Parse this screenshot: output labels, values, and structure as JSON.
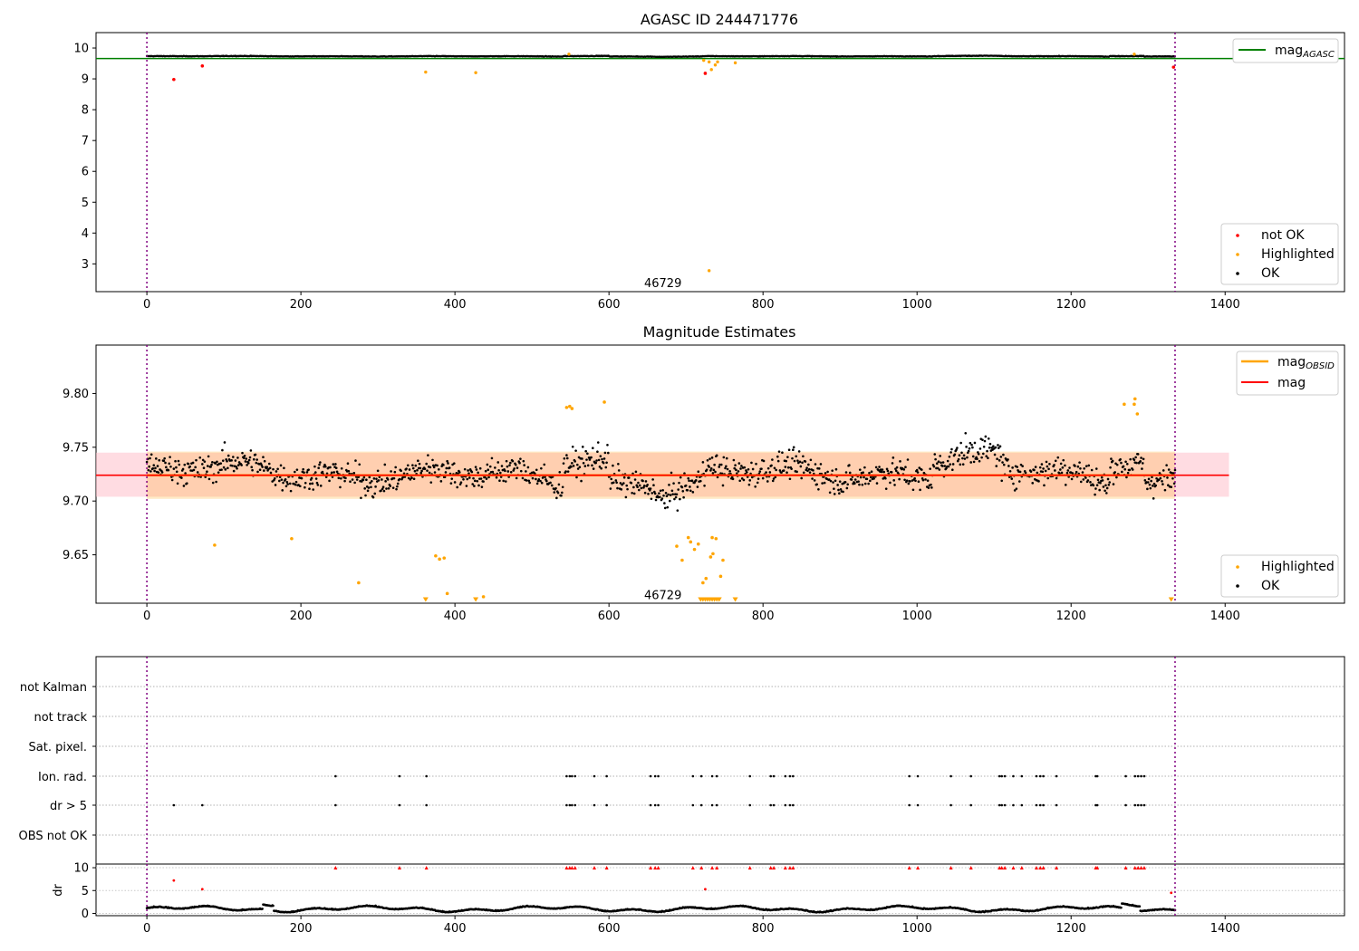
{
  "chart_data": [
    {
      "type": "scatter",
      "title": "AGASC ID 244471776",
      "xlim": [
        -66,
        1555
      ],
      "ylim": [
        2.1,
        10.5
      ],
      "x_ticks": [
        0,
        200,
        400,
        600,
        800,
        1000,
        1200,
        1400
      ],
      "y_ticks": [
        3,
        4,
        5,
        6,
        7,
        8,
        9,
        10
      ],
      "series": [
        {
          "name": "not OK",
          "color": "#ff0000",
          "points": [
            [
              35,
              8.98
            ],
            [
              72,
              9.42
            ],
            [
              725,
              9.18
            ],
            [
              1333,
              9.38
            ]
          ]
        },
        {
          "name": "Highlighted",
          "color": "#ffa500",
          "points": [
            [
              362,
              9.22
            ],
            [
              427,
              9.2
            ],
            [
              730,
              2.78
            ],
            [
              723,
              9.6
            ],
            [
              730,
              9.55
            ],
            [
              733,
              9.3
            ],
            [
              738,
              9.45
            ],
            [
              741,
              9.55
            ],
            [
              764,
              9.52
            ],
            [
              548,
              9.8
            ],
            [
              1282,
              9.8
            ]
          ]
        },
        {
          "name": "OK",
          "color": "#000000",
          "range": [
            0,
            1335
          ],
          "level": 9.73,
          "spread": 0.03
        }
      ],
      "lines": [
        {
          "name": "mag_AGASC",
          "color": "#008000",
          "y": 9.66
        }
      ],
      "obs_boundaries": [
        0,
        1335
      ],
      "annotation": {
        "text": "46729",
        "x": 670,
        "y": 2.45
      }
    },
    {
      "type": "scatter",
      "title": "Magnitude Estimates",
      "xlim": [
        -66,
        1555
      ],
      "ylim": [
        9.605,
        9.845
      ],
      "x_ticks": [
        0,
        200,
        400,
        600,
        800,
        1000,
        1200,
        1400
      ],
      "y_ticks": [
        "9.65",
        "9.70",
        "9.75",
        "9.80"
      ],
      "mag": 9.724,
      "mag_band": [
        9.704,
        9.745
      ],
      "mag_obsid_band": [
        9.702,
        9.746
      ],
      "series": [
        {
          "name": "Highlighted",
          "color": "#ffa500",
          "points": [
            [
              88,
              9.659
            ],
            [
              188,
              9.665
            ],
            [
              275,
              9.624
            ],
            [
              375,
              9.649
            ],
            [
              380,
              9.646
            ],
            [
              386,
              9.647
            ],
            [
              390,
              9.614
            ],
            [
              437,
              9.611
            ],
            [
              545,
              9.787
            ],
            [
              549,
              9.788
            ],
            [
              552,
              9.786
            ],
            [
              594,
              9.792
            ],
            [
              688,
              9.658
            ],
            [
              695,
              9.645
            ],
            [
              703,
              9.666
            ],
            [
              706,
              9.662
            ],
            [
              711,
              9.655
            ],
            [
              716,
              9.66
            ],
            [
              722,
              9.624
            ],
            [
              726,
              9.628
            ],
            [
              732,
              9.648
            ],
            [
              734,
              9.666
            ],
            [
              735,
              9.651
            ],
            [
              739,
              9.665
            ],
            [
              745,
              9.63
            ],
            [
              748,
              9.645
            ],
            [
              1269,
              9.79
            ],
            [
              1282,
              9.79
            ],
            [
              1283,
              9.795
            ],
            [
              1286,
              9.781
            ]
          ]
        },
        {
          "name": "Highlighted (below range)",
          "color": "#ffa500",
          "marker": "triangle-down",
          "xs": [
            362,
            427,
            719,
            722,
            725,
            728,
            731,
            734,
            737,
            740,
            743,
            764,
            1330
          ]
        },
        {
          "name": "OK",
          "color": "#000000",
          "range": [
            0,
            1335
          ]
        }
      ],
      "lines": [
        {
          "name": "mag_OBSID",
          "color": "#ffa500"
        },
        {
          "name": "mag",
          "color": "#ff0000",
          "y": 9.724
        }
      ],
      "obs_boundaries": [
        0,
        1335
      ],
      "annotation": {
        "text": "46729",
        "x": 670,
        "y": 9.613
      }
    },
    {
      "type": "scatter",
      "title": "",
      "xlim": [
        -66,
        1555
      ],
      "flag_rows": [
        "not Kalman",
        "not track",
        "Sat. pixel.",
        "Ion. rad.",
        "dr > 5",
        "OBS not OK"
      ],
      "ion_rad_x": [
        245,
        328,
        363,
        545,
        549,
        552,
        556,
        581,
        597,
        654,
        660,
        664,
        709,
        720,
        734,
        740,
        783,
        810,
        814,
        829,
        835,
        839,
        990,
        1001,
        1044,
        1070,
        1107,
        1110,
        1114,
        1125,
        1136,
        1155,
        1160,
        1164,
        1181,
        1232,
        1234,
        1271,
        1283,
        1287,
        1291,
        1295
      ],
      "dr_gt5_extra_x": [
        35,
        72
      ],
      "obs_boundaries": [
        0,
        1335
      ]
    },
    {
      "type": "scatter",
      "title": "",
      "ylabel": "dr",
      "xlim": [
        -66,
        1555
      ],
      "ylim": [
        -0.5,
        10.8
      ],
      "x_ticks": [
        0,
        200,
        400,
        600,
        800,
        1000,
        1200,
        1400
      ],
      "y_ticks": [
        0,
        5,
        10
      ],
      "series": [
        {
          "name": "dr > 5",
          "color": "#ff0000",
          "points": [
            [
              35,
              7.2
            ],
            [
              72,
              5.3
            ],
            [
              725,
              5.3
            ],
            [
              1330,
              4.5
            ]
          ]
        },
        {
          "name": "dr OK",
          "color": "#000000",
          "range": [
            0,
            1335
          ]
        }
      ],
      "obs_boundaries": [
        0,
        1335
      ]
    }
  ],
  "legends": {
    "top_right": "mag",
    "top_right_sub": "AGASC",
    "top_bottom": [
      "not OK",
      "Highlighted",
      "OK"
    ],
    "mid_right_line1": "mag",
    "mid_right_line1_sub": "OBSID",
    "mid_right_line2": "mag",
    "mid_bottom": [
      "Highlighted",
      "OK"
    ]
  }
}
